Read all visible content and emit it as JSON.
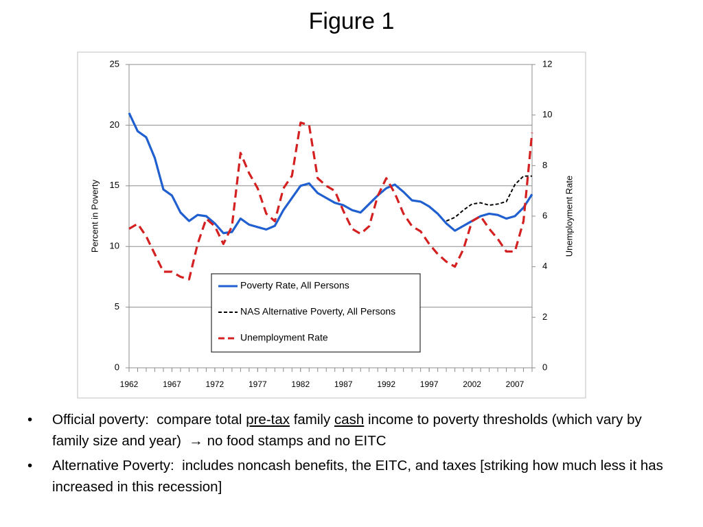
{
  "chart_data": {
    "type": "line",
    "title": "Figure 1",
    "x": [
      1962,
      1963,
      1964,
      1965,
      1966,
      1967,
      1968,
      1969,
      1970,
      1971,
      1972,
      1973,
      1974,
      1975,
      1976,
      1977,
      1978,
      1979,
      1980,
      1981,
      1982,
      1983,
      1984,
      1985,
      1986,
      1987,
      1988,
      1989,
      1990,
      1991,
      1992,
      1993,
      1994,
      1995,
      1996,
      1997,
      1998,
      1999,
      2000,
      2001,
      2002,
      2003,
      2004,
      2005,
      2006,
      2007,
      2008,
      2009
    ],
    "xlim": [
      1962,
      2009
    ],
    "xticks": [
      1962,
      1967,
      1972,
      1977,
      1982,
      1987,
      1992,
      1997,
      2002,
      2007
    ],
    "ylim": [
      0,
      25
    ],
    "yticks": [
      0,
      5,
      10,
      15,
      20,
      25
    ],
    "y2lim": [
      0,
      12
    ],
    "y2ticks": [
      0,
      2,
      4,
      6,
      8,
      10,
      12
    ],
    "ylabel": "Percent in Poverty",
    "y2label": "Unemployment Rate",
    "grid": true,
    "series": [
      {
        "name": "Poverty Rate, All Persons",
        "color": "#1f5fcf",
        "dash": "solid",
        "values": [
          21.0,
          19.5,
          19.0,
          17.3,
          14.7,
          14.2,
          12.8,
          12.1,
          12.6,
          12.5,
          11.9,
          11.1,
          11.2,
          12.3,
          11.8,
          11.6,
          11.4,
          11.7,
          13.0,
          14.0,
          15.0,
          15.2,
          14.4,
          14.0,
          13.6,
          13.4,
          13.0,
          12.8,
          13.5,
          14.2,
          14.8,
          15.1,
          14.5,
          13.8,
          13.7,
          13.3,
          12.7,
          11.9,
          11.3,
          11.7,
          12.1,
          12.5,
          12.7,
          12.6,
          12.3,
          12.5,
          13.2,
          14.3
        ]
      },
      {
        "name": "NAS Alternative Poverty, All Persons",
        "color": "#000000",
        "dash": "short",
        "values": [
          null,
          null,
          null,
          null,
          null,
          null,
          null,
          null,
          null,
          null,
          null,
          null,
          null,
          null,
          null,
          null,
          null,
          null,
          null,
          null,
          null,
          null,
          null,
          null,
          null,
          null,
          null,
          null,
          null,
          null,
          null,
          null,
          null,
          null,
          null,
          null,
          null,
          12.1,
          12.4,
          13.0,
          13.5,
          13.6,
          13.4,
          13.5,
          13.7,
          15.1,
          15.8,
          15.8
        ]
      },
      {
        "name": "Unemployment Rate",
        "color": "#d42020",
        "dash": "long",
        "axis": "y2",
        "values": [
          5.5,
          5.7,
          5.2,
          4.5,
          3.8,
          3.8,
          3.6,
          3.5,
          4.9,
          5.9,
          5.6,
          4.9,
          5.6,
          8.5,
          7.7,
          7.1,
          6.1,
          5.8,
          7.1,
          7.6,
          9.7,
          9.6,
          7.5,
          7.2,
          7.0,
          6.2,
          5.5,
          5.3,
          5.6,
          6.8,
          7.5,
          6.9,
          6.1,
          5.6,
          5.4,
          4.9,
          4.5,
          4.2,
          4.0,
          4.7,
          5.8,
          6.0,
          5.5,
          5.1,
          4.6,
          4.6,
          5.8,
          9.3
        ]
      }
    ]
  },
  "bullets": [
    [
      {
        "text": "Official poverty:  compare total "
      },
      {
        "text": "pre-tax",
        "underline": true
      },
      {
        "text": " family "
      },
      {
        "text": "cash",
        "underline": true
      },
      {
        "text": " income to poverty thresholds (which vary by family size and year)  → no food stamps and no EITC"
      }
    ],
    [
      {
        "text": "Alternative Poverty:  includes noncash benefits, the EITC, and taxes [striking how much less it has increased in this recession]"
      }
    ]
  ]
}
